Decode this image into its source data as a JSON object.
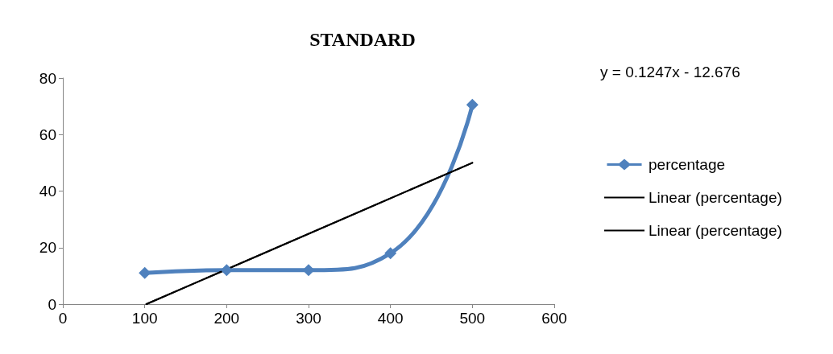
{
  "chart_data": {
    "type": "line",
    "title": "STANDARD",
    "annotations": [
      "y = 0.1247x - 12.676"
    ],
    "series": [
      {
        "name": "percentage",
        "color": "#4f81bd",
        "x": [
          100,
          200,
          300,
          400,
          500
        ],
        "values": [
          11,
          12,
          12,
          18,
          70.5
        ],
        "marker": "diamond"
      },
      {
        "name": "Linear (percentage)",
        "color": "#000000",
        "x": [
          102,
          500
        ],
        "values": [
          0,
          50
        ],
        "marker": "none"
      },
      {
        "name": "Linear (percentage)",
        "color": "#000000",
        "x": [
          102,
          500
        ],
        "values": [
          0,
          50
        ],
        "marker": "none"
      }
    ],
    "xlim": [
      0,
      600
    ],
    "xticks": [
      0,
      100,
      200,
      300,
      400,
      500,
      600
    ],
    "ylim": [
      0,
      80
    ],
    "yticks": [
      0,
      20,
      40,
      60,
      80
    ],
    "grid": false,
    "legend": "right"
  }
}
